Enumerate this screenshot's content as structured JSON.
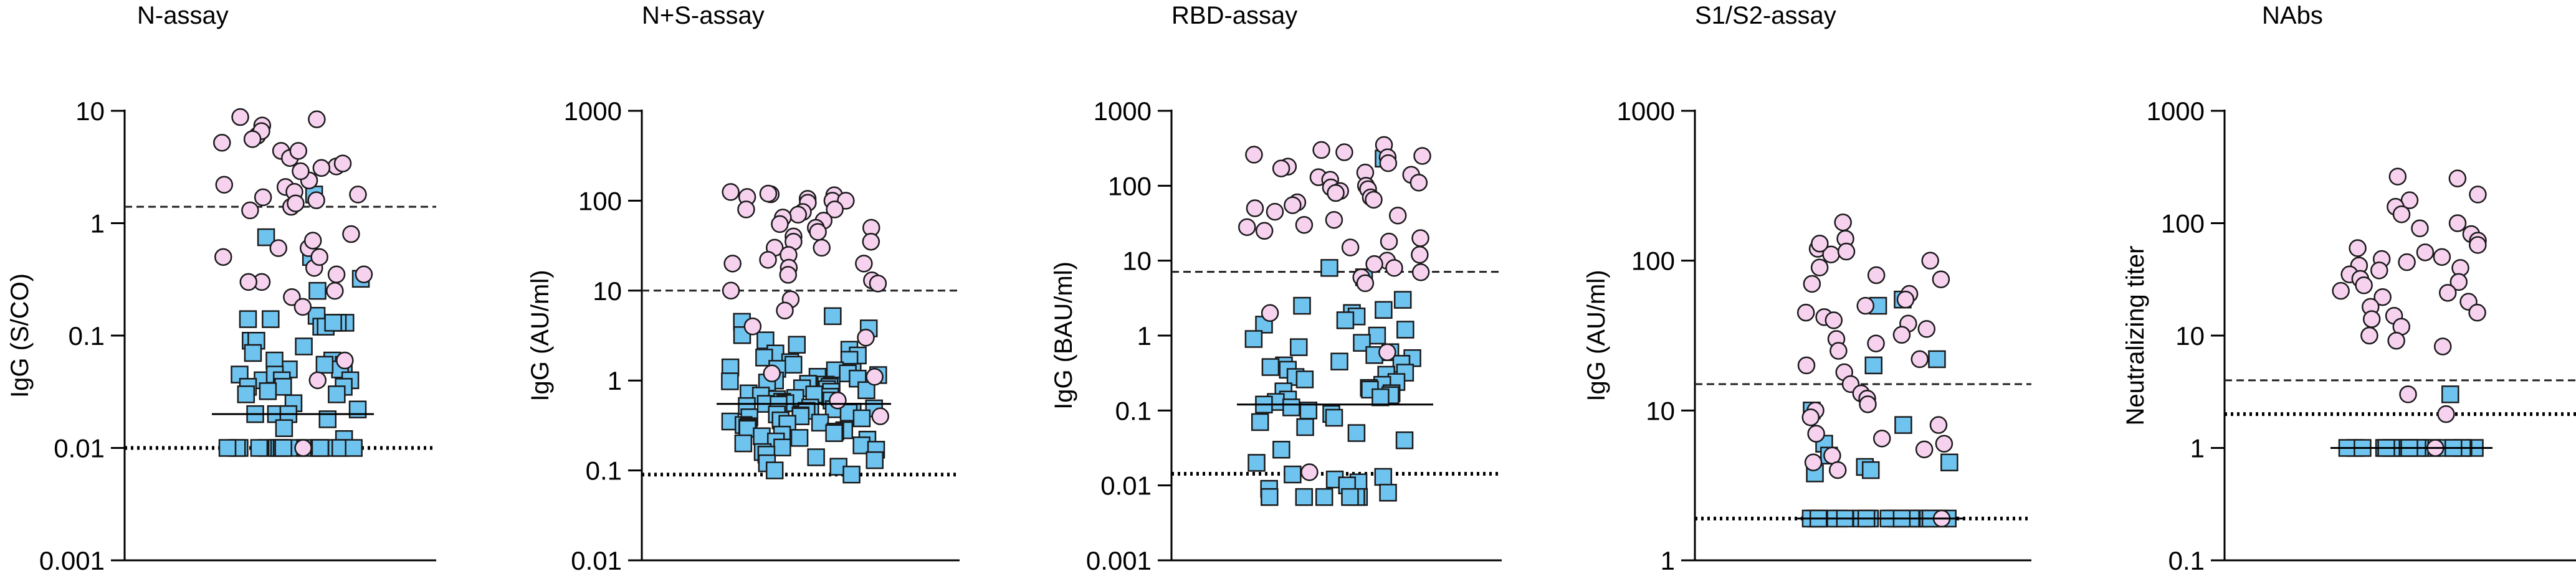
{
  "chart_data": [
    {
      "type": "scatter",
      "title": "N-assay",
      "ylabel": "IgG (S/CO)",
      "yscale": "log",
      "ylim": [
        0.001,
        10
      ],
      "yticks": [
        0.001,
        0.01,
        0.1,
        1,
        10
      ],
      "ytick_labels": [
        "0.001",
        "0.01",
        "0.1",
        "1",
        "10"
      ],
      "cutoff_dashed": 1.4,
      "cutoff_dotted": 0.01,
      "median": 0.02,
      "circles": [
        6,
        8.8,
        8.4,
        5.2,
        7.4,
        6.6,
        4.4,
        5.6,
        3.2,
        3.8,
        4.4,
        3.4,
        2.4,
        3.1,
        2.2,
        2.9,
        2.1,
        1.9,
        1.6,
        1.7,
        1.4,
        1.8,
        1.3,
        1.5,
        0.8,
        0.6,
        0.5,
        0.7,
        0.4,
        0.6,
        0.35,
        0.5,
        0.3,
        0.25,
        0.35,
        0.22,
        0.3,
        0.18,
        0.04,
        0.06,
        0.01
      ],
      "squares": [
        1.8,
        0.75,
        0.5,
        0.32,
        0.25,
        0.15,
        0.14,
        0.13,
        0.12,
        0.13,
        0.12,
        0.14,
        0.13,
        0.09,
        0.08,
        0.09,
        0.07,
        0.06,
        0.055,
        0.05,
        0.045,
        0.05,
        0.055,
        0.06,
        0.04,
        0.045,
        0.04,
        0.035,
        0.04,
        0.035,
        0.03,
        0.035,
        0.03,
        0.032,
        0.02,
        0.025,
        0.022,
        0.02,
        0.018,
        0.02,
        0.015,
        0.012,
        0.01,
        0.01,
        0.01,
        0.01,
        0.01,
        0.01,
        0.01,
        0.01,
        0.01,
        0.01,
        0.01,
        0.01,
        0.01,
        0.01,
        0.01,
        0.01,
        0.01,
        0.01
      ]
    },
    {
      "type": "scatter",
      "title": "N+S-assay",
      "ylabel": "IgG (AU/ml)",
      "yscale": "log",
      "ylim": [
        0.01,
        1000
      ],
      "yticks": [
        0.01,
        0.1,
        1,
        10,
        100,
        1000
      ],
      "ytick_labels": [
        "0.01",
        "0.1",
        "1",
        "10",
        "100",
        "1000"
      ],
      "cutoff_dashed": 10,
      "cutoff_dotted": 0.09,
      "median": 0.55,
      "circles": [
        118,
        105,
        100,
        95,
        115,
        100,
        120,
        110,
        100,
        125,
        80,
        75,
        70,
        65,
        80,
        60,
        50,
        55,
        40,
        35,
        45,
        30,
        50,
        35,
        30,
        25,
        20,
        22,
        20,
        18,
        15,
        13,
        12,
        10,
        8,
        6,
        4,
        3,
        1.2,
        1.1,
        0.6,
        0.4
      ],
      "squares": [
        5.2,
        4.5,
        3.8,
        3.2,
        2.8,
        2.5,
        2.2,
        2.0,
        1.9,
        1.8,
        1.7,
        1.6,
        1.5,
        1.4,
        1.35,
        1.3,
        1.25,
        1.2,
        1.15,
        1.1,
        1.05,
        1.0,
        0.98,
        0.95,
        0.92,
        0.9,
        0.88,
        0.85,
        0.82,
        0.8,
        0.78,
        0.75,
        0.72,
        0.7,
        0.68,
        0.66,
        0.64,
        0.62,
        0.6,
        0.58,
        0.56,
        0.55,
        0.54,
        0.52,
        0.5,
        0.49,
        0.48,
        0.46,
        0.45,
        0.44,
        0.42,
        0.41,
        0.4,
        0.39,
        0.38,
        0.36,
        0.35,
        0.34,
        0.33,
        0.32,
        0.31,
        0.3,
        0.29,
        0.28,
        0.27,
        0.26,
        0.25,
        0.24,
        0.23,
        0.22,
        0.21,
        0.2,
        0.19,
        0.18,
        0.17,
        0.16,
        0.15,
        0.14,
        0.13,
        0.12,
        0.11,
        0.1,
        0.09
      ]
    },
    {
      "type": "scatter",
      "title": "RBD-assay",
      "ylabel": "IgG (BAU/ml)",
      "yscale": "log",
      "ylim": [
        0.001,
        1000
      ],
      "yticks": [
        0.001,
        0.01,
        0.1,
        1,
        10,
        100,
        1000
      ],
      "ytick_labels": [
        "0.001",
        "0.01",
        "0.1",
        "1",
        "10",
        "100",
        "1000"
      ],
      "cutoff_dashed": 7.1,
      "cutoff_dotted": 0.0143,
      "median": 0.12,
      "circles": [
        280,
        350,
        300,
        260,
        250,
        240,
        200,
        180,
        170,
        150,
        140,
        130,
        120,
        110,
        100,
        95,
        90,
        85,
        80,
        70,
        65,
        60,
        55,
        50,
        45,
        40,
        35,
        30,
        28,
        25,
        20,
        18,
        15,
        12,
        10,
        9,
        8,
        7,
        6,
        5,
        2,
        0.6,
        0.015
      ],
      "squares": [
        230,
        8,
        6,
        3,
        2.5,
        2.2,
        2,
        1.8,
        1.6,
        1.4,
        1.2,
        1,
        0.9,
        0.8,
        0.7,
        0.6,
        0.55,
        0.5,
        0.45,
        0.42,
        0.4,
        0.38,
        0.35,
        0.32,
        0.3,
        0.28,
        0.26,
        0.24,
        0.22,
        0.2,
        0.19,
        0.18,
        0.17,
        0.16,
        0.15,
        0.14,
        0.13,
        0.12,
        0.11,
        0.1,
        0.09,
        0.08,
        0.07,
        0.06,
        0.05,
        0.04,
        0.03,
        0.02,
        0.014,
        0.013,
        0.012,
        0.011,
        0.01,
        0.009,
        0.008,
        0.007,
        0.007,
        0.007,
        0.007,
        0.007,
        0.007
      ]
    },
    {
      "type": "scatter",
      "title": "S1/S2-assay",
      "ylabel": "IgG (AU/ml)",
      "yscale": "log",
      "ylim": [
        1,
        1000
      ],
      "yticks": [
        1,
        10,
        100,
        1000
      ],
      "ytick_labels": [
        "1",
        "10",
        "100",
        "1000"
      ],
      "cutoff_dashed": 15,
      "cutoff_dotted": 1.9,
      "median": 1.9,
      "circles": [
        140,
        180,
        120,
        110,
        130,
        115,
        100,
        90,
        80,
        75,
        70,
        60,
        55,
        50,
        45,
        42,
        40,
        38,
        35,
        32,
        30,
        28,
        25,
        22,
        20,
        18,
        15,
        13,
        12,
        11,
        10,
        9,
        8,
        7,
        6.5,
        6,
        5.5,
        5,
        4.5,
        4,
        1.9
      ],
      "squares": [
        55,
        50,
        22,
        20,
        10,
        8,
        6,
        5,
        4.5,
        4.2,
        4,
        3.8,
        1.9,
        1.9,
        1.9,
        1.9,
        1.9,
        1.9,
        1.9,
        1.9,
        1.9,
        1.9,
        1.9,
        1.9,
        1.9,
        1.9,
        1.9,
        1.9,
        1.9,
        1.9,
        1.9,
        1.9,
        1.9,
        1.9
      ]
    },
    {
      "type": "scatter",
      "title": "NAbs",
      "ylabel": "Neutralizing titer",
      "yscale": "log",
      "ylim": [
        0.1,
        1000
      ],
      "yticks": [
        0.1,
        1,
        10,
        100,
        1000
      ],
      "ytick_labels": [
        "0.1",
        "1",
        "10",
        "100",
        "1000"
      ],
      "cutoff_dashed": 4,
      "cutoff_dotted": 2,
      "median": 1,
      "circles": [
        260,
        250,
        180,
        160,
        140,
        120,
        100,
        90,
        80,
        70,
        64,
        60,
        55,
        50,
        48,
        45,
        42,
        40,
        38,
        35,
        32,
        30,
        28,
        25,
        24,
        22,
        20,
        18,
        16,
        15,
        14,
        12,
        10,
        9,
        8,
        3,
        2,
        1
      ],
      "squares": [
        3,
        1,
        1,
        1,
        1,
        1,
        1,
        1,
        1,
        1,
        1,
        1,
        1,
        1,
        1,
        1,
        1,
        1,
        1,
        1,
        1,
        1,
        1,
        1,
        1
      ]
    }
  ],
  "colors": {
    "circle_fill": "#f6d2ef",
    "square_fill": "#6fc3ef",
    "stroke": "#1a1a1a",
    "axis": "#000000"
  }
}
